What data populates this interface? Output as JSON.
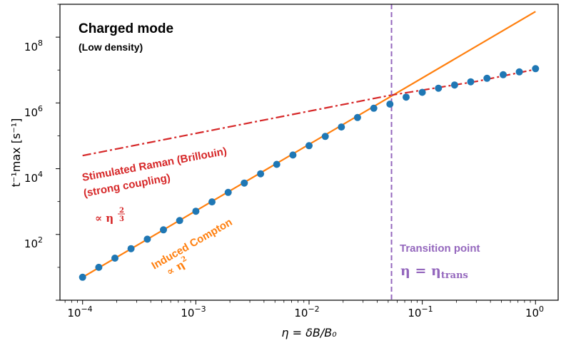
{
  "chart_data": {
    "type": "scatter",
    "xscale": "log",
    "yscale": "log",
    "xlim": [
      6.31e-05,
      1.585
    ],
    "ylim": [
      1.0,
      1000000000.0
    ],
    "xlabel": "η = δB/B₀",
    "ylabel": "t⁻¹max [s⁻¹]",
    "x_ticks": [
      {
        "value": 0.0001,
        "base": "10",
        "exp": "−4"
      },
      {
        "value": 0.001,
        "base": "10",
        "exp": "−3"
      },
      {
        "value": 0.01,
        "base": "10",
        "exp": "−2"
      },
      {
        "value": 0.1,
        "base": "10",
        "exp": "−1"
      },
      {
        "value": 1,
        "base": "10",
        "exp": "0"
      }
    ],
    "y_ticks": [
      {
        "value": 100,
        "base": "10",
        "exp": "2"
      },
      {
        "value": 10000,
        "base": "10",
        "exp": "4"
      },
      {
        "value": 1000000,
        "base": "10",
        "exp": "6"
      },
      {
        "value": 100000000,
        "base": "10",
        "exp": "8"
      }
    ],
    "series": [
      {
        "kind": "scatter",
        "color": "#1f77b4",
        "x": [
          0.0001,
          0.000139,
          0.000193,
          0.000268,
          0.000373,
          0.000518,
          0.00072,
          0.001,
          0.00139,
          0.00193,
          0.00268,
          0.00373,
          0.00518,
          0.0072,
          0.01,
          0.0139,
          0.0193,
          0.0268,
          0.0373,
          0.0518,
          0.072,
          0.1,
          0.139,
          0.193,
          0.268,
          0.373,
          0.518,
          0.72,
          1.0
        ],
        "y": [
          5,
          10,
          19,
          37,
          72,
          138,
          265,
          510,
          980,
          1900,
          3650,
          7000,
          13500,
          26000,
          50000,
          96000,
          185000,
          360000,
          690000,
          920000,
          1500000,
          2100000,
          2800000,
          3500000,
          4400000,
          5600000,
          7200000,
          8800000,
          11000000
        ]
      },
      {
        "kind": "line",
        "style": "solid",
        "color": "#ff7f0e",
        "x": [
          0.0001,
          1.0
        ],
        "y": [
          5,
          600000000
        ]
      },
      {
        "kind": "line",
        "style": "dashdot",
        "color": "#d62728",
        "x": [
          0.0001,
          0.0518,
          0.3,
          1.0
        ],
        "y": [
          25000,
          1700000,
          4500000,
          10500000
        ]
      },
      {
        "kind": "vline",
        "style": "dashed",
        "color": "#9467bd",
        "x": 0.0535
      }
    ],
    "annotations": {
      "title": "Charged mode",
      "subtitle": "(Low density)",
      "raman_line1": "Stimulated Raman (Brillouin)",
      "raman_line2": "(strong coupling)",
      "raman_scaling_prefix": "∝ η",
      "raman_exp_num": "2",
      "raman_exp_den": "3",
      "compton": "Induced Compton",
      "compton_scaling_prefix": "∝ η",
      "compton_exp": "2",
      "transition": "Transition point",
      "transition_eta": "η",
      "transition_eq": " = ",
      "transition_sym": "η",
      "transition_sub": "trans"
    }
  }
}
